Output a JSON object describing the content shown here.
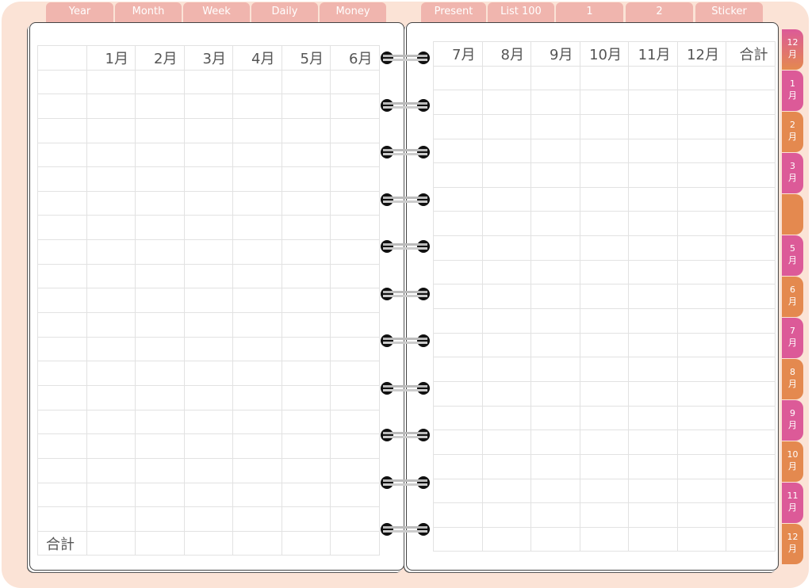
{
  "top_tabs_left": [
    "Year",
    "Month",
    "Week",
    "Daily",
    "Money"
  ],
  "top_tabs_right": [
    "Present",
    "List 100",
    "1",
    "2",
    "Sticker"
  ],
  "left_table": {
    "headers": [
      "",
      "1月",
      "2月",
      "3月",
      "4月",
      "5月",
      "6月"
    ],
    "blank_rows": 19,
    "total_label": "合計"
  },
  "right_table": {
    "headers": [
      "7月",
      "8月",
      "9月",
      "10月",
      "11月",
      "12月",
      "合計"
    ],
    "blank_rows": 20
  },
  "side_tabs": [
    {
      "num": "12",
      "unit": "月",
      "color": "gradient"
    },
    {
      "num": "1",
      "unit": "月",
      "color": "#dc5a98"
    },
    {
      "num": "2",
      "unit": "月",
      "color": "#e4894f"
    },
    {
      "num": "3",
      "unit": "月",
      "color": "#dc5a98"
    },
    {
      "num": "",
      "unit": "",
      "color": "#e4894f"
    },
    {
      "num": "5",
      "unit": "月",
      "color": "#dc5a98"
    },
    {
      "num": "6",
      "unit": "月",
      "color": "#e4894f"
    },
    {
      "num": "7",
      "unit": "月",
      "color": "#dc5a98"
    },
    {
      "num": "8",
      "unit": "月",
      "color": "#e4894f"
    },
    {
      "num": "9",
      "unit": "月",
      "color": "#dc5a98"
    },
    {
      "num": "10",
      "unit": "月",
      "color": "#e4894f"
    },
    {
      "num": "11",
      "unit": "月",
      "color": "#dc5a98"
    },
    {
      "num": "12",
      "unit": "月",
      "color": "#e4894f"
    }
  ],
  "colors": {
    "background": "#fbe3d6",
    "top_tab": "#f0b5ae",
    "pink": "#dc5a98",
    "orange": "#e4894f"
  }
}
